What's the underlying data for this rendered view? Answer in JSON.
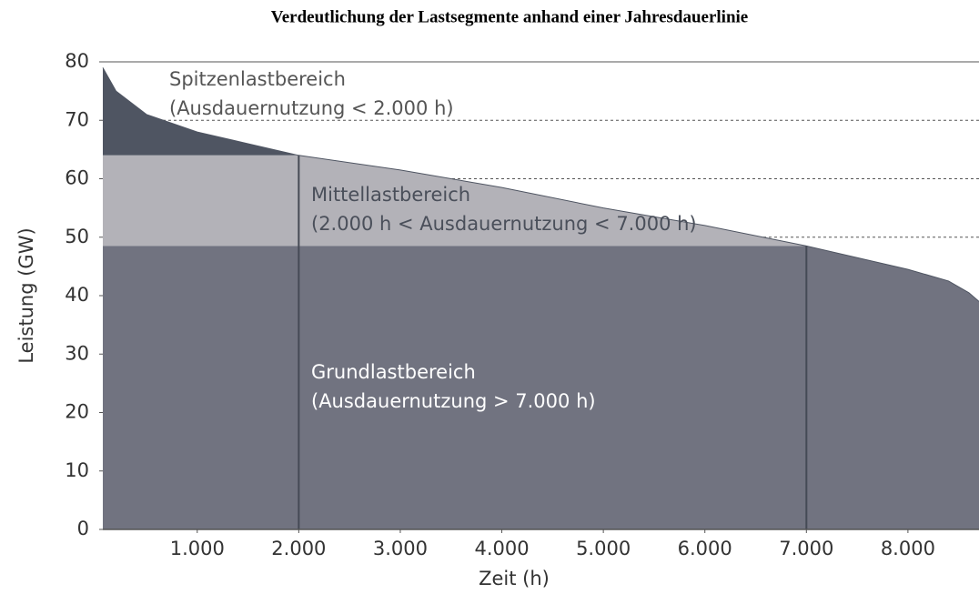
{
  "chart_data": {
    "type": "area",
    "title": "Verdeutlichung der Lastsegmente anhand einer Jahresdauerlinie",
    "x_label": "Zeit (h)",
    "y_label": "Leistung (GW)",
    "x": [
      70,
      200,
      500,
      1000,
      1500,
      2000,
      3000,
      4000,
      5000,
      6000,
      7000,
      8000,
      8400,
      8600,
      8700
    ],
    "series": [
      {
        "values": [
          79,
          75,
          71,
          68,
          66,
          64,
          61.5,
          58.5,
          55,
          52,
          48.5,
          44.5,
          42.5,
          40.5,
          39
        ]
      }
    ],
    "segments": [
      {
        "label": "Spitzenlastbereich",
        "note": "(Ausdauernutzung < 2.000 h)",
        "color": "#4f5562",
        "from": 64,
        "hours": 2000
      },
      {
        "label": "Mittellastbereich",
        "note": "(2.000 h < Ausdauernutzung  < 7.000 h)",
        "color": "#b3b2b8",
        "from": 48.5,
        "hours": 7000
      },
      {
        "label": "Grundlastbereich",
        "note": "(Ausdauernutzung  > 7.000 h)",
        "color": "#717380",
        "from": 0
      }
    ],
    "xlim": [
      70,
      8700
    ],
    "ylim": [
      0,
      80
    ],
    "xticks": [
      {
        "value": 1000,
        "label": "1.000"
      },
      {
        "value": 2000,
        "label": "2.000"
      },
      {
        "value": 3000,
        "label": "3.000"
      },
      {
        "value": 4000,
        "label": "4.000"
      },
      {
        "value": 5000,
        "label": "5.000"
      },
      {
        "value": 6000,
        "label": "6.000"
      },
      {
        "value": 7000,
        "label": "7.000"
      },
      {
        "value": 8000,
        "label": "8.000"
      }
    ],
    "yticks": [
      0,
      10,
      20,
      30,
      40,
      50,
      60,
      70,
      80
    ],
    "grid_ticks": [
      50,
      60,
      70
    ]
  }
}
